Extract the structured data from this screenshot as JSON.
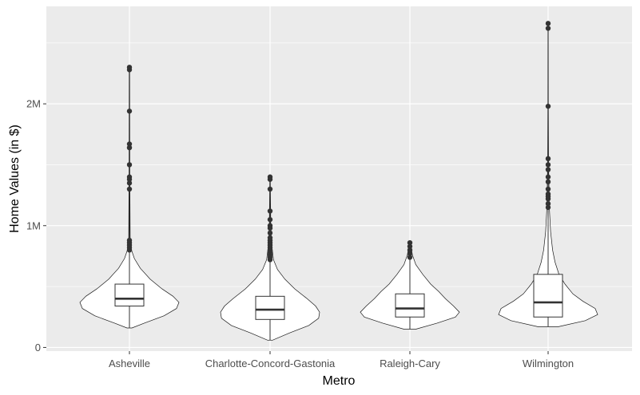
{
  "chart_data": {
    "type": "violin",
    "xlabel": "Metro",
    "ylabel": "Home Values (in $)",
    "categories": [
      "Asheville",
      "Charlotte-Concord-Gastonia",
      "Raleigh-Cary",
      "Wilmington"
    ],
    "y_ticks": [
      {
        "value": 0,
        "label": "0"
      },
      {
        "value": 1000000,
        "label": "1M"
      },
      {
        "value": 2000000,
        "label": "2M"
      }
    ],
    "ylim": [
      -30000,
      2800000
    ],
    "grid": true,
    "legend": "none",
    "groups": [
      {
        "name": "Asheville",
        "min": 160000,
        "q1": 340000,
        "median": 400000,
        "q3": 520000,
        "whisker_high": 780000,
        "max": 2300000,
        "outliers": [
          800000,
          820000,
          840000,
          860000,
          880000,
          1300000,
          1350000,
          1380000,
          1400000,
          1500000,
          1640000,
          1670000,
          1940000,
          2280000,
          2300000
        ],
        "density": [
          [
            160000,
            0.05
          ],
          [
            200000,
            0.3
          ],
          [
            260000,
            0.7
          ],
          [
            320000,
            0.95
          ],
          [
            370000,
            1.0
          ],
          [
            420000,
            0.88
          ],
          [
            480000,
            0.66
          ],
          [
            560000,
            0.42
          ],
          [
            650000,
            0.22
          ],
          [
            730000,
            0.1
          ],
          [
            800000,
            0.04
          ],
          [
            900000,
            0.015
          ],
          [
            1400000,
            0.008
          ],
          [
            2300000,
            0.005
          ]
        ]
      },
      {
        "name": "Charlotte-Concord-Gastonia",
        "min": 60000,
        "q1": 230000,
        "median": 310000,
        "q3": 420000,
        "whisker_high": 700000,
        "max": 1400000,
        "outliers": [
          720000,
          740000,
          760000,
          780000,
          800000,
          820000,
          840000,
          860000,
          880000,
          900000,
          940000,
          980000,
          1000000,
          1050000,
          1120000,
          1300000,
          1380000,
          1400000
        ],
        "density": [
          [
            60000,
            0.05
          ],
          [
            120000,
            0.4
          ],
          [
            180000,
            0.78
          ],
          [
            240000,
            0.98
          ],
          [
            290000,
            1.0
          ],
          [
            340000,
            0.92
          ],
          [
            400000,
            0.75
          ],
          [
            480000,
            0.5
          ],
          [
            560000,
            0.3
          ],
          [
            640000,
            0.15
          ],
          [
            720000,
            0.07
          ],
          [
            850000,
            0.03
          ],
          [
            1000000,
            0.015
          ],
          [
            1400000,
            0.005
          ]
        ]
      },
      {
        "name": "Raleigh-Cary",
        "min": 150000,
        "q1": 250000,
        "median": 320000,
        "q3": 440000,
        "whisker_high": 720000,
        "max": 860000,
        "outliers": [
          740000,
          770000,
          800000,
          830000,
          860000
        ],
        "density": [
          [
            150000,
            0.12
          ],
          [
            200000,
            0.55
          ],
          [
            250000,
            0.92
          ],
          [
            290000,
            1.0
          ],
          [
            340000,
            0.88
          ],
          [
            400000,
            0.72
          ],
          [
            460000,
            0.58
          ],
          [
            520000,
            0.42
          ],
          [
            600000,
            0.26
          ],
          [
            680000,
            0.12
          ],
          [
            760000,
            0.05
          ],
          [
            860000,
            0.015
          ]
        ]
      },
      {
        "name": "Wilmington",
        "min": 170000,
        "q1": 250000,
        "median": 370000,
        "q3": 600000,
        "whisker_high": 1130000,
        "max": 2660000,
        "outliers": [
          1150000,
          1180000,
          1220000,
          1240000,
          1260000,
          1300000,
          1360000,
          1400000,
          1460000,
          1500000,
          1550000,
          1980000,
          2620000,
          2660000
        ],
        "density": [
          [
            170000,
            0.2
          ],
          [
            220000,
            0.75
          ],
          [
            270000,
            1.0
          ],
          [
            320000,
            0.95
          ],
          [
            380000,
            0.7
          ],
          [
            440000,
            0.5
          ],
          [
            520000,
            0.34
          ],
          [
            600000,
            0.22
          ],
          [
            700000,
            0.14
          ],
          [
            800000,
            0.09
          ],
          [
            950000,
            0.05
          ],
          [
            1150000,
            0.025
          ],
          [
            1500000,
            0.01
          ],
          [
            2000000,
            0.005
          ],
          [
            2660000,
            0.003
          ]
        ]
      }
    ]
  }
}
